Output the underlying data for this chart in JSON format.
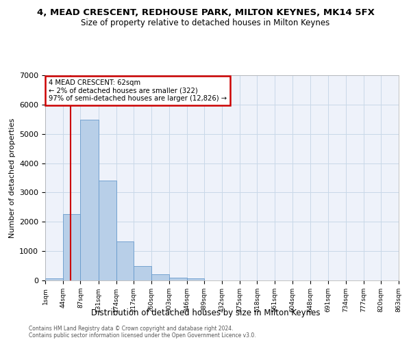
{
  "title": "4, MEAD CRESCENT, REDHOUSE PARK, MILTON KEYNES, MK14 5FX",
  "subtitle": "Size of property relative to detached houses in Milton Keynes",
  "xlabel": "Distribution of detached houses by size in Milton Keynes",
  "ylabel": "Number of detached properties",
  "bar_color": "#b8cfe8",
  "bar_edge_color": "#6699cc",
  "grid_color": "#c8d8e8",
  "background_color": "#eef2fa",
  "vline_x": 62,
  "vline_color": "#cc0000",
  "annotation_text": "4 MEAD CRESCENT: 62sqm\n← 2% of detached houses are smaller (322)\n97% of semi-detached houses are larger (12,826) →",
  "annotation_box_color": "#cc0000",
  "bin_edges": [
    1,
    44,
    87,
    131,
    174,
    217,
    260,
    303,
    346,
    389,
    432,
    475,
    518,
    561,
    604,
    648,
    691,
    734,
    777,
    820,
    863
  ],
  "bar_heights": [
    75,
    2270,
    5475,
    3400,
    1320,
    490,
    200,
    100,
    65,
    0,
    0,
    0,
    0,
    0,
    0,
    0,
    0,
    0,
    0,
    0
  ],
  "ylim": [
    0,
    7000
  ],
  "yticks": [
    0,
    1000,
    2000,
    3000,
    4000,
    5000,
    6000,
    7000
  ],
  "xtick_labels": [
    "1sqm",
    "44sqm",
    "87sqm",
    "131sqm",
    "174sqm",
    "217sqm",
    "260sqm",
    "303sqm",
    "346sqm",
    "389sqm",
    "432sqm",
    "475sqm",
    "518sqm",
    "561sqm",
    "604sqm",
    "648sqm",
    "691sqm",
    "734sqm",
    "777sqm",
    "820sqm",
    "863sqm"
  ],
  "footer_text": "Contains HM Land Registry data © Crown copyright and database right 2024.\nContains public sector information licensed under the Open Government Licence v3.0.",
  "figsize": [
    6.0,
    5.0
  ],
  "dpi": 100
}
